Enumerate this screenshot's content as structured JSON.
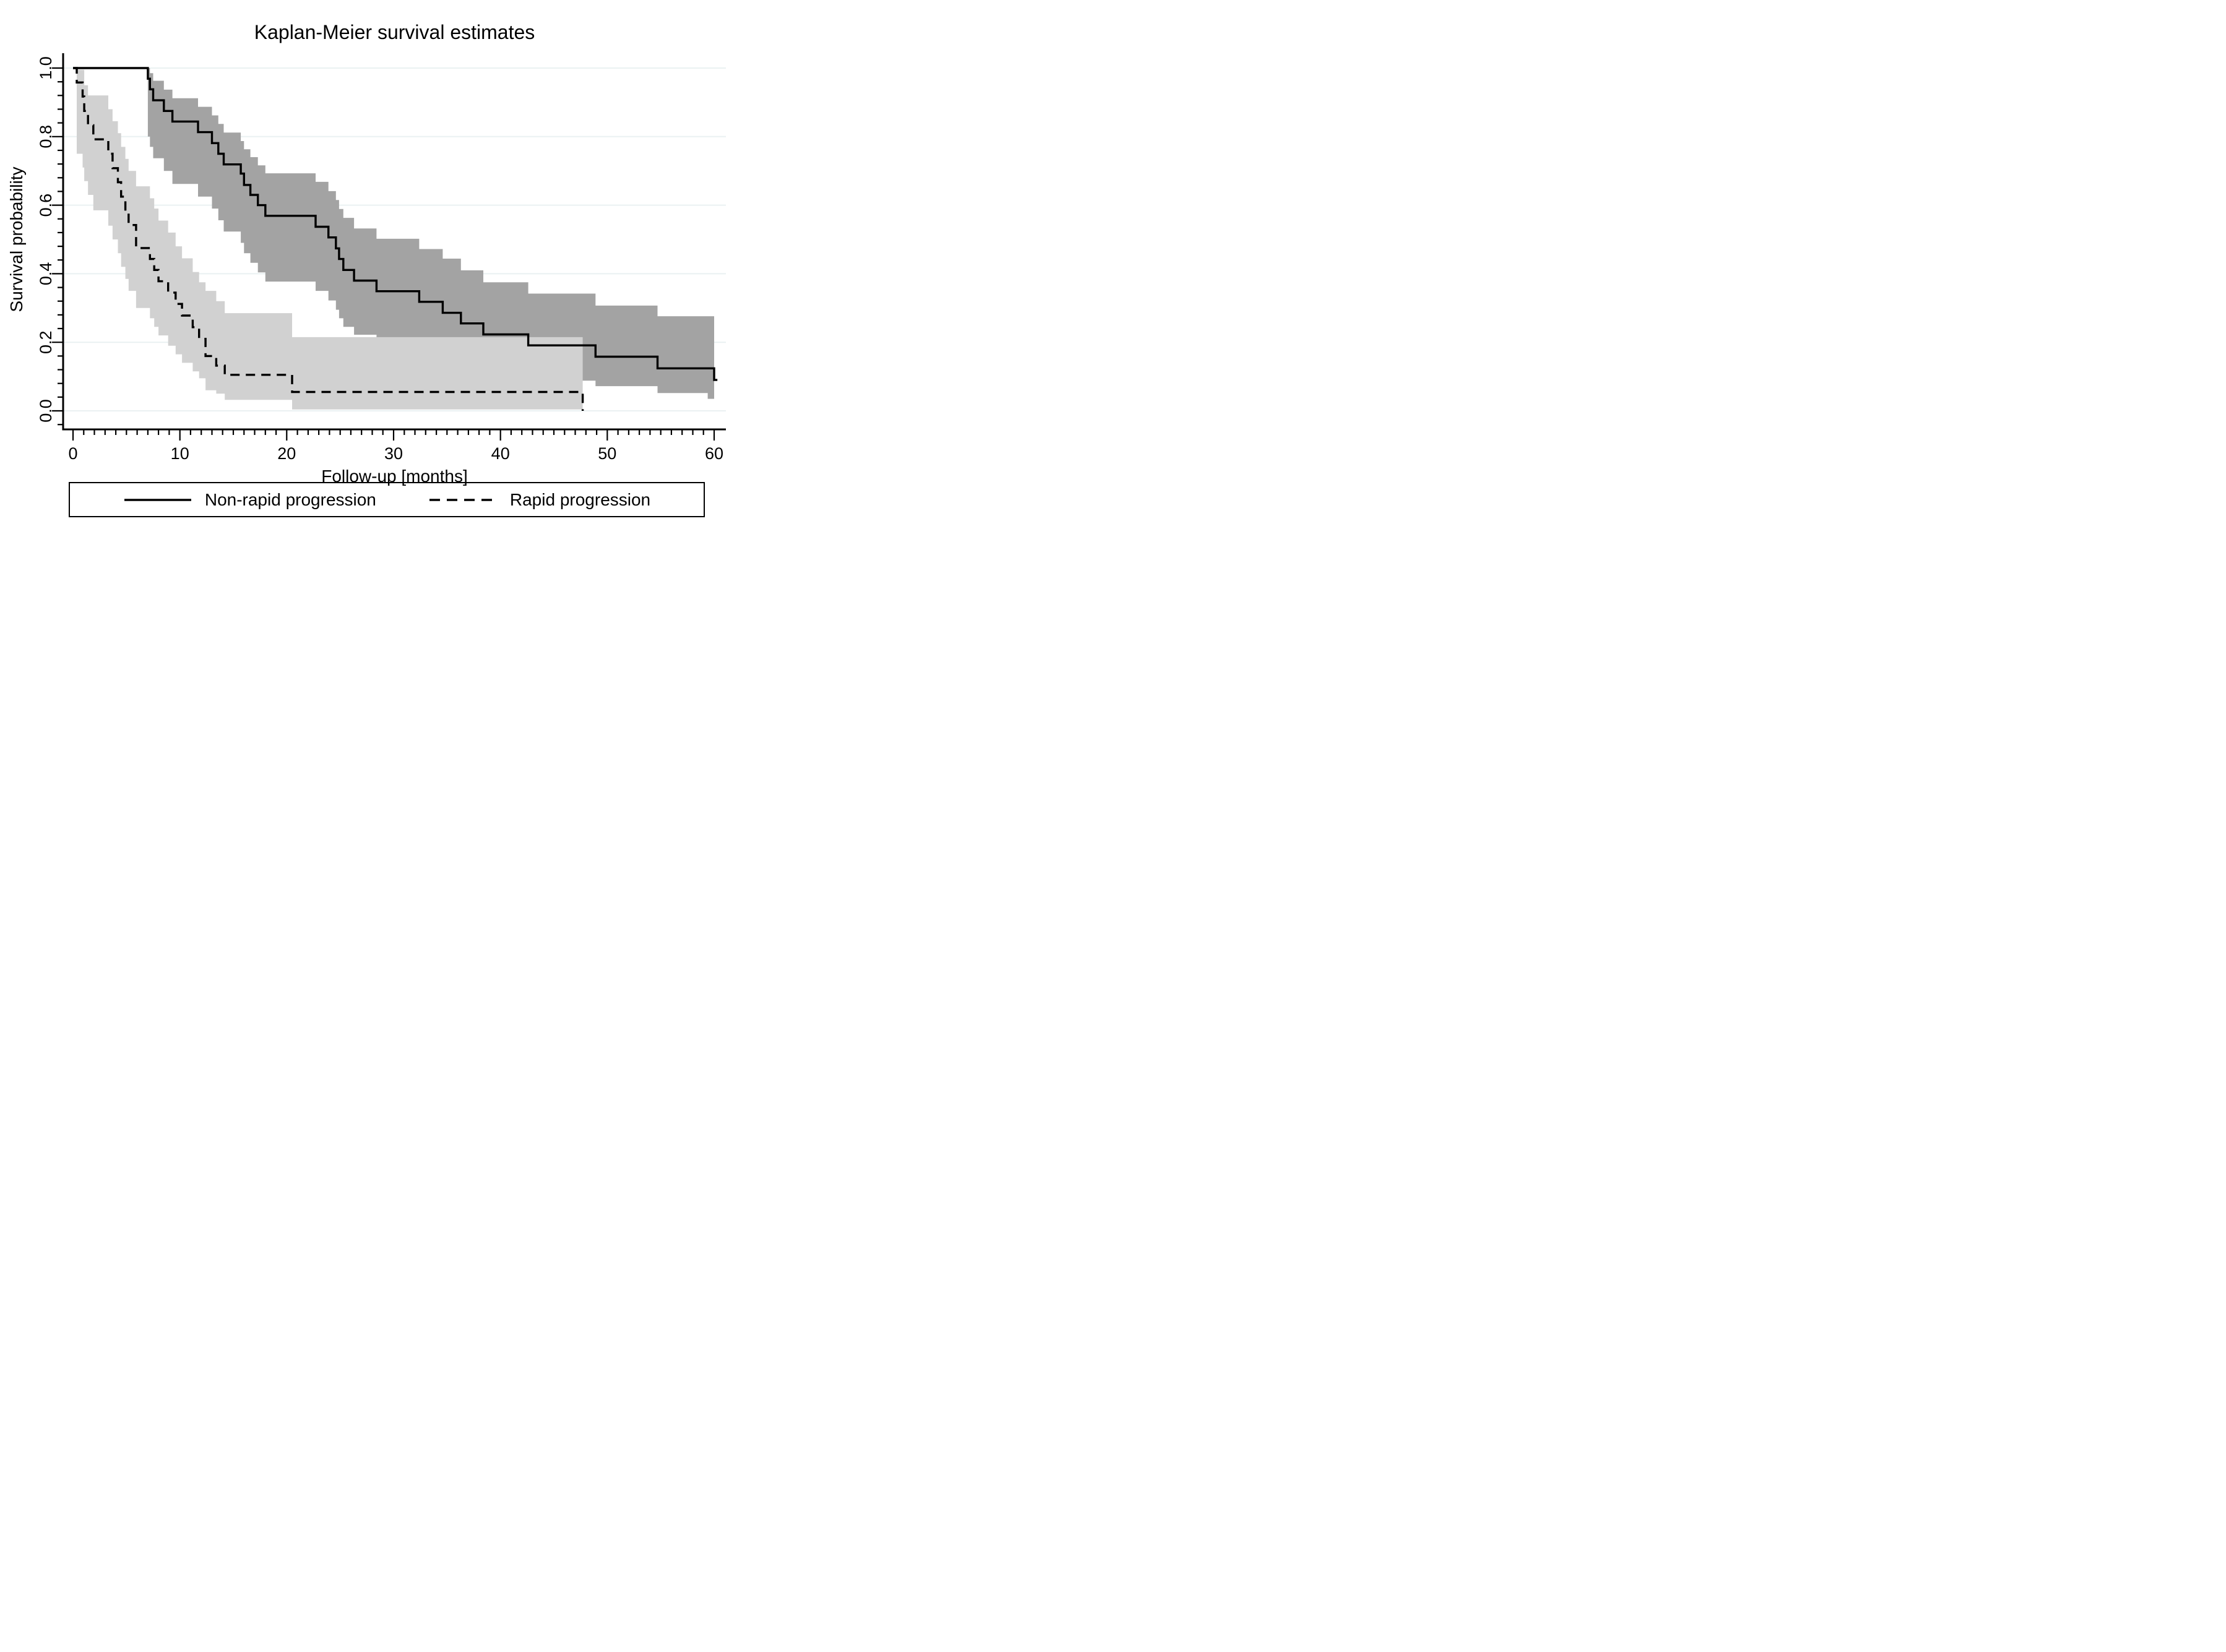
{
  "chart_data": {
    "type": "line",
    "subtype": "kaplan-meier-step",
    "title": "Kaplan-Meier survival estimates",
    "xlabel": "Follow-up [months]",
    "ylabel": "Survival probability",
    "xlim": [
      0,
      60
    ],
    "ylim": [
      0.0,
      1.0
    ],
    "grid": "horizontal",
    "legend_position": "bottom",
    "x_ticks": [
      0,
      10,
      20,
      30,
      40,
      50,
      60
    ],
    "x_tick_labels": [
      "0",
      "10",
      "20",
      "30",
      "40",
      "50",
      "60"
    ],
    "x_minor_tick_step": 1,
    "y_ticks": [
      0.0,
      0.2,
      0.4,
      0.6,
      0.8,
      1.0
    ],
    "y_tick_labels": [
      "0.0",
      "0.2",
      "0.4",
      "0.6",
      "0.8",
      "1.0"
    ],
    "y_minor_tick_step": 0.04,
    "colors": {
      "curve": "#000000",
      "grid": "#eaf1f2",
      "axis": "#000000",
      "ci_band_non_rapid": "#a3a3a3",
      "ci_band_rapid": "#d1d1d1",
      "background": "#ffffff"
    },
    "series": [
      {
        "name": "Non-rapid progression",
        "line": "solid",
        "steps": [
          [
            0,
            1.0
          ],
          [
            7,
            0.969
          ],
          [
            7.2,
            0.938
          ],
          [
            7.5,
            0.906
          ],
          [
            8.5,
            0.875
          ],
          [
            9.3,
            0.844
          ],
          [
            11.7,
            0.813
          ],
          [
            13,
            0.781
          ],
          [
            13.6,
            0.75
          ],
          [
            14.1,
            0.719
          ],
          [
            15.7,
            0.692
          ],
          [
            16,
            0.659
          ],
          [
            16.6,
            0.63
          ],
          [
            17.3,
            0.6
          ],
          [
            18,
            0.569
          ],
          [
            22.7,
            0.537
          ],
          [
            23.9,
            0.506
          ],
          [
            24.6,
            0.474
          ],
          [
            24.9,
            0.443
          ],
          [
            25.3,
            0.411
          ],
          [
            26.3,
            0.38
          ],
          [
            28.4,
            0.349
          ],
          [
            32.4,
            0.318
          ],
          [
            34.6,
            0.286
          ],
          [
            36.3,
            0.255
          ],
          [
            38.4,
            0.223
          ],
          [
            42.6,
            0.191
          ],
          [
            48.9,
            0.158
          ],
          [
            54.7,
            0.124
          ],
          [
            60,
            0.09
          ]
        ],
        "t_end": 60.3
      },
      {
        "name": "Rapid progression",
        "line": "dashed",
        "steps": [
          [
            0,
            1.0
          ],
          [
            0.35,
            0.958
          ],
          [
            0.9,
            0.917
          ],
          [
            1.05,
            0.875
          ],
          [
            1.4,
            0.833
          ],
          [
            1.9,
            0.792
          ],
          [
            3.3,
            0.75
          ],
          [
            3.7,
            0.708
          ],
          [
            4.2,
            0.667
          ],
          [
            4.5,
            0.625
          ],
          [
            4.9,
            0.583
          ],
          [
            5.2,
            0.542
          ],
          [
            5.9,
            0.475
          ],
          [
            7.2,
            0.443
          ],
          [
            7.6,
            0.411
          ],
          [
            8,
            0.378
          ],
          [
            8.9,
            0.345
          ],
          [
            9.6,
            0.312
          ],
          [
            10.2,
            0.278
          ],
          [
            11.2,
            0.244
          ],
          [
            11.8,
            0.21
          ],
          [
            12.4,
            0.16
          ],
          [
            13.4,
            0.132
          ],
          [
            14.2,
            0.105
          ],
          [
            20.5,
            0.055
          ],
          [
            47.7,
            0
          ]
        ],
        "t_end": 47.7
      }
    ],
    "confidence_bands": [
      {
        "series": "Non-rapid progression",
        "color": "#a3a3a3",
        "t_end": 60,
        "steps": [
          [
            7,
            0.8,
            1.0
          ],
          [
            7.2,
            0.77,
            0.985
          ],
          [
            7.5,
            0.737,
            0.963
          ],
          [
            8.5,
            0.7,
            0.937
          ],
          [
            9.3,
            0.662,
            0.912
          ],
          [
            11.7,
            0.625,
            0.887
          ],
          [
            13,
            0.59,
            0.862
          ],
          [
            13.6,
            0.556,
            0.837
          ],
          [
            14.1,
            0.523,
            0.812
          ],
          [
            15.7,
            0.49,
            0.787
          ],
          [
            16,
            0.46,
            0.763
          ],
          [
            16.6,
            0.432,
            0.74
          ],
          [
            17.3,
            0.404,
            0.716
          ],
          [
            18,
            0.377,
            0.693
          ],
          [
            22.7,
            0.35,
            0.668
          ],
          [
            23.9,
            0.322,
            0.641
          ],
          [
            24.6,
            0.295,
            0.615
          ],
          [
            24.9,
            0.27,
            0.589
          ],
          [
            25.3,
            0.245,
            0.563
          ],
          [
            26.3,
            0.222,
            0.532
          ],
          [
            28.4,
            0.2,
            0.502
          ],
          [
            32.4,
            0.178,
            0.472
          ],
          [
            34.6,
            0.152,
            0.444
          ],
          [
            36.3,
            0.128,
            0.41
          ],
          [
            38.4,
            0.106,
            0.375
          ],
          [
            42.6,
            0.088,
            0.342
          ],
          [
            48.9,
            0.072,
            0.307
          ],
          [
            54.7,
            0.052,
            0.276
          ],
          [
            59.4,
            0.035,
            0.276
          ]
        ]
      },
      {
        "series": "Rapid progression",
        "color": "#d1d1d1",
        "t_end": 47.7,
        "steps": [
          [
            0.35,
            0.75,
            0.995
          ],
          [
            0.9,
            0.71,
            0.995
          ],
          [
            1.05,
            0.67,
            0.95
          ],
          [
            1.4,
            0.63,
            0.92
          ],
          [
            1.9,
            0.585,
            0.92
          ],
          [
            3.3,
            0.54,
            0.88
          ],
          [
            3.7,
            0.5,
            0.845
          ],
          [
            4.2,
            0.46,
            0.81
          ],
          [
            4.5,
            0.42,
            0.77
          ],
          [
            4.9,
            0.385,
            0.735
          ],
          [
            5.2,
            0.35,
            0.7
          ],
          [
            5.9,
            0.3,
            0.655
          ],
          [
            7.2,
            0.27,
            0.62
          ],
          [
            7.6,
            0.245,
            0.59
          ],
          [
            8,
            0.22,
            0.555
          ],
          [
            8.9,
            0.19,
            0.52
          ],
          [
            9.6,
            0.165,
            0.48
          ],
          [
            10.2,
            0.14,
            0.445
          ],
          [
            11.2,
            0.115,
            0.405
          ],
          [
            11.8,
            0.095,
            0.375
          ],
          [
            12.4,
            0.06,
            0.35
          ],
          [
            13.4,
            0.05,
            0.32
          ],
          [
            14.2,
            0.032,
            0.285
          ],
          [
            20.5,
            0.004,
            0.215
          ]
        ]
      }
    ]
  },
  "legend": {
    "entries": [
      {
        "label": "Non-rapid progression",
        "style": "solid"
      },
      {
        "label": "Rapid progression",
        "style": "dashed"
      }
    ]
  }
}
